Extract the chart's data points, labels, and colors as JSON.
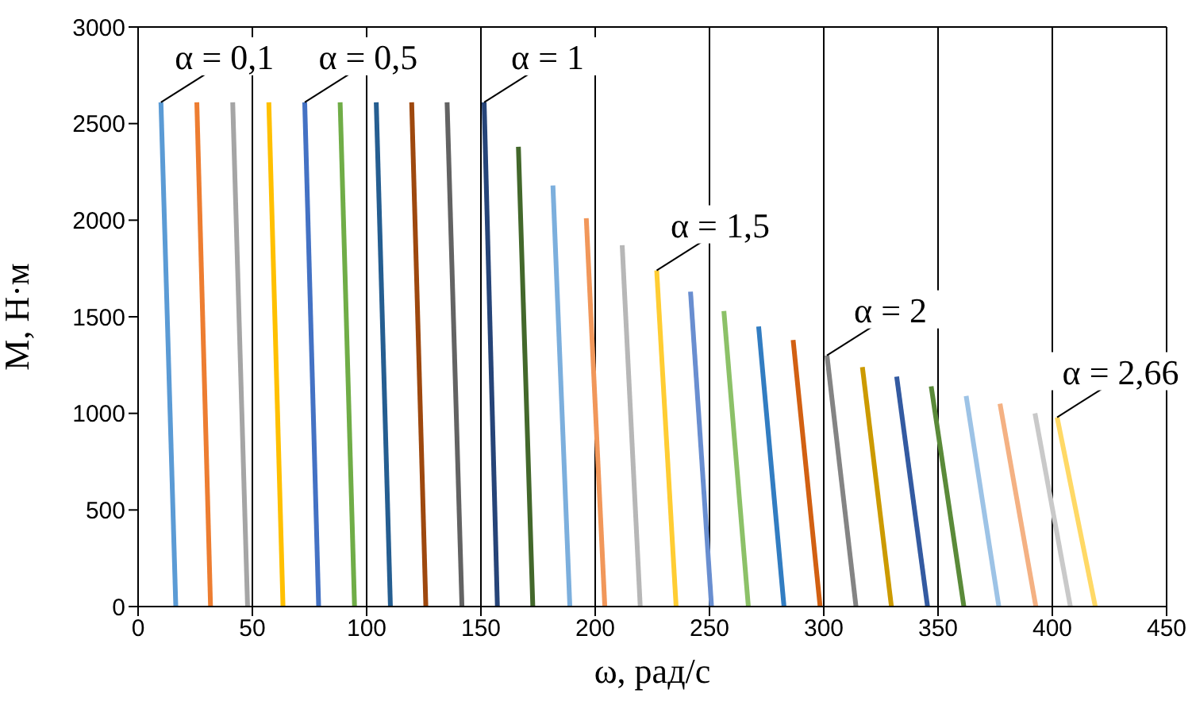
{
  "chart_data": {
    "type": "line",
    "xlabel": "ω, рад/с",
    "ylabel": "M, Н·м",
    "xlim": [
      0,
      450
    ],
    "xticks": [
      0,
      50,
      100,
      150,
      200,
      250,
      300,
      350,
      400,
      450
    ],
    "ylim": [
      0,
      3000
    ],
    "yticks": [
      0,
      500,
      1000,
      1500,
      2000,
      2500,
      3000
    ],
    "grid": true,
    "legend": false,
    "marker": "none",
    "line_style": "solid",
    "series": [
      {
        "color": "#5b9bd5",
        "x": [
          10,
          16.5
        ],
        "values": [
          2610,
          0
        ]
      },
      {
        "color": "#ed7d31",
        "x": [
          25.7,
          31.7
        ],
        "values": [
          2610,
          0
        ]
      },
      {
        "color": "#a5a5a5",
        "x": [
          41.4,
          47.9
        ],
        "values": [
          2610,
          0
        ]
      },
      {
        "color": "#ffc000",
        "x": [
          57.2,
          63.4
        ],
        "values": [
          2610,
          0
        ]
      },
      {
        "color": "#4472c4",
        "x": [
          72.9,
          79
        ],
        "values": [
          2610,
          0
        ]
      },
      {
        "color": "#70ad47",
        "x": [
          88.4,
          94.7
        ],
        "values": [
          2610,
          0
        ]
      },
      {
        "color": "#255e91",
        "x": [
          104.2,
          110.4
        ],
        "values": [
          2610,
          0
        ]
      },
      {
        "color": "#9e480e",
        "x": [
          119.7,
          125.9
        ],
        "values": [
          2610,
          0
        ]
      },
      {
        "color": "#636363",
        "x": [
          135.2,
          141.7
        ],
        "values": [
          2610,
          0
        ]
      },
      {
        "color": "#264478",
        "x": [
          151.4,
          157.2
        ],
        "values": [
          2610,
          0
        ]
      },
      {
        "color": "#43682b",
        "x": [
          166.4,
          172.7
        ],
        "values": [
          2380,
          0
        ]
      },
      {
        "color": "#7cafdd",
        "x": [
          181.5,
          188.9
        ],
        "values": [
          2180,
          0
        ]
      },
      {
        "color": "#f1975a",
        "x": [
          196.1,
          204.2
        ],
        "values": [
          2010,
          0
        ]
      },
      {
        "color": "#b7b7b7",
        "x": [
          211.8,
          219.7
        ],
        "values": [
          1870,
          0
        ]
      },
      {
        "color": "#ffcd33",
        "x": [
          226.9,
          235.4
        ],
        "values": [
          1740,
          0
        ]
      },
      {
        "color": "#698ed0",
        "x": [
          241.7,
          250.9
        ],
        "values": [
          1630,
          0
        ]
      },
      {
        "color": "#8cc168",
        "x": [
          256.3,
          267
        ],
        "values": [
          1530,
          0
        ]
      },
      {
        "color": "#327dc2",
        "x": [
          271.5,
          282.6
        ],
        "values": [
          1450,
          0
        ]
      },
      {
        "color": "#d26012",
        "x": [
          286.6,
          298.4
        ],
        "values": [
          1380,
          0
        ]
      },
      {
        "color": "#848484",
        "x": [
          301.4,
          314.1
        ],
        "values": [
          1300,
          0
        ]
      },
      {
        "color": "#cc9a00",
        "x": [
          316.9,
          329.6
        ],
        "values": [
          1240,
          0
        ]
      },
      {
        "color": "#335aa1",
        "x": [
          331.9,
          345.4
        ],
        "values": [
          1190,
          0
        ]
      },
      {
        "color": "#5a8a39",
        "x": [
          347,
          361.3
        ],
        "values": [
          1140,
          0
        ]
      },
      {
        "color": "#9dc3e6",
        "x": [
          362.3,
          376.6
        ],
        "values": [
          1090,
          0
        ]
      },
      {
        "color": "#f4b183",
        "x": [
          377.1,
          392.8
        ],
        "values": [
          1050,
          0
        ]
      },
      {
        "color": "#c9c9c9",
        "x": [
          392.4,
          407.9
        ],
        "values": [
          1000,
          0
        ]
      },
      {
        "color": "#ffd966",
        "x": [
          402.1,
          418.8
        ],
        "values": [
          980,
          0
        ]
      }
    ],
    "annotations": [
      {
        "text": "α = 0,1",
        "x": 10,
        "y": 2610
      },
      {
        "text": "α = 0,5",
        "x": 72.9,
        "y": 2610
      },
      {
        "text": "α = 1",
        "x": 151.4,
        "y": 2610
      },
      {
        "text": "α = 1,5",
        "x": 226.9,
        "y": 1740
      },
      {
        "text": "α = 2",
        "x": 301.4,
        "y": 1300
      },
      {
        "text": "α = 2,66",
        "x": 402.1,
        "y": 980
      }
    ]
  }
}
